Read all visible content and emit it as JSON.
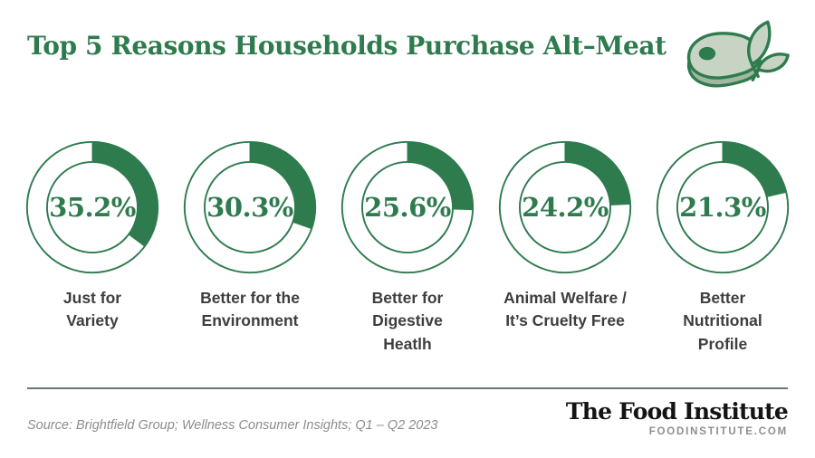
{
  "header": {
    "title": "Top 5 Reasons Households Purchase Alt–Meat",
    "logo": "steak-with-leaves-icon"
  },
  "chart_data": {
    "type": "pie",
    "variant": "donut-gauge-set",
    "title": "Top 5 Reasons Households Purchase Alt–Meat",
    "unit": "%",
    "categories": [
      "Just for Variety",
      "Better for the Environment",
      "Better for Digestive Heatlh",
      "Animal Welfare / It’s Cruelty Free",
      "Better Nutritional Profile"
    ],
    "values": [
      35.2,
      30.3,
      25.6,
      24.2,
      21.3
    ],
    "display_values": [
      "35.2%",
      "30.3%",
      "25.6%",
      "24.2%",
      "21.3%"
    ],
    "labels_multiline": [
      "Just for\nVariety",
      "Better for the\nEnvironment",
      "Better for\nDigestive\nHeatlh",
      "Animal Welfare /\nIt’s Cruelty Free",
      "Better\nNutritional\nProfile"
    ],
    "start_angle": "12-oclock",
    "direction": "clockwise",
    "ring": {
      "outer_radius": 75,
      "inner_radius": 52
    },
    "legend": "none",
    "grid": "none"
  },
  "footer": {
    "source": "Source: Brightfield Group; Wellness Consumer Insights; Q1 – Q2 2023",
    "brand_name": "The Food Institute",
    "brand_url": "FOODINSTITUTE.COM"
  },
  "colors": {
    "accent_green": "#2e7b4e",
    "donut_empty": "#ffffff",
    "label_gray": "#3e3e3e",
    "source_gray": "#8c8c8c",
    "divider_gray": "#6e7378",
    "brand_black": "#141414",
    "logo_sage": "#c7d3c3",
    "logo_sage_shade": "#a2b7a0"
  }
}
